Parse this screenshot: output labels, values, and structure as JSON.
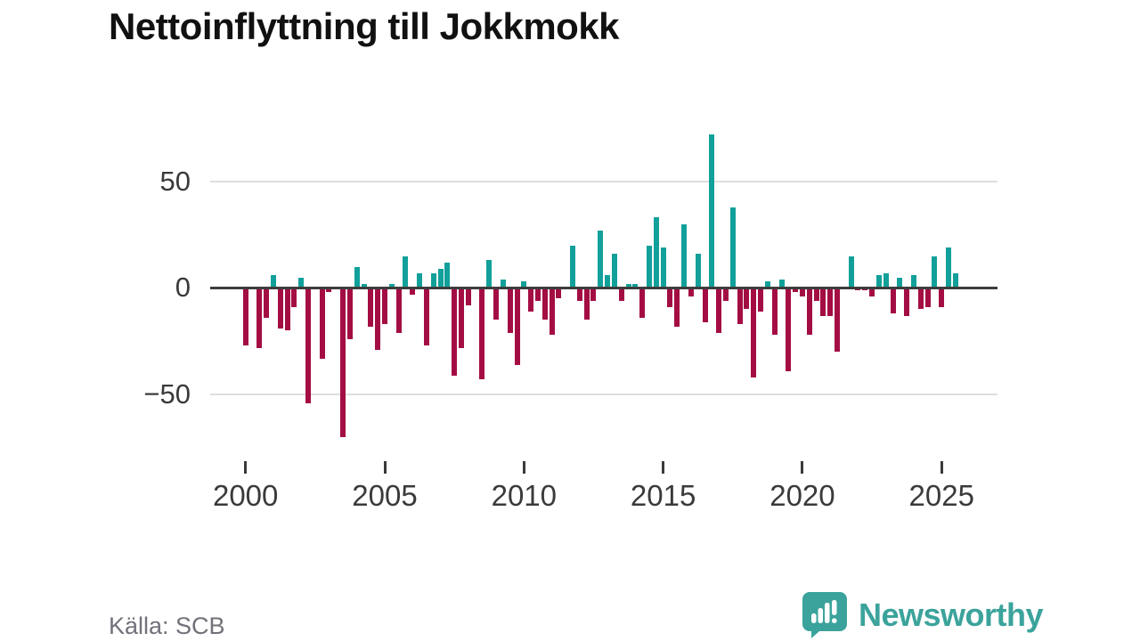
{
  "title": "Nettoinflyttning till Jokkmokk",
  "source_label": "Källa: SCB",
  "brand": {
    "name": "Newsworthy",
    "color": "#3ba39b",
    "icon": "speech-bubble-bar-chart"
  },
  "colors": {
    "positive_bar": "#12a09a",
    "negative_bar": "#a40d44",
    "zero_axis": "#3d3d3d",
    "gridline": "#dedede",
    "axis_text": "#3a3a3a",
    "muted_text": "#71717a"
  },
  "y_axis": {
    "tick_labels": [
      "50",
      "0",
      "−50"
    ],
    "tick_values": [
      50,
      0,
      -50
    ]
  },
  "x_axis": {
    "tick_labels": [
      "2000",
      "2005",
      "2010",
      "2015",
      "2020",
      "2025"
    ]
  },
  "chart_data": {
    "type": "bar",
    "title": "Nettoinflyttning till Jokkmokk",
    "xlabel": "",
    "ylabel": "",
    "ylim": [
      -75,
      80
    ],
    "grid": "horizontal",
    "legend": "none",
    "frequency": "quarterly",
    "quarters": [
      "2000Q1",
      "2000Q2",
      "2000Q3",
      "2000Q4",
      "2001Q1",
      "2001Q2",
      "2001Q3",
      "2001Q4",
      "2002Q1",
      "2002Q2",
      "2002Q3",
      "2002Q4",
      "2003Q1",
      "2003Q2",
      "2003Q3",
      "2003Q4",
      "2004Q1",
      "2004Q2",
      "2004Q3",
      "2004Q4",
      "2005Q1",
      "2005Q2",
      "2005Q3",
      "2005Q4",
      "2006Q1",
      "2006Q2",
      "2006Q3",
      "2006Q4",
      "2007Q1",
      "2007Q2",
      "2007Q3",
      "2007Q4",
      "2008Q1",
      "2008Q2",
      "2008Q3",
      "2008Q4",
      "2009Q1",
      "2009Q2",
      "2009Q3",
      "2009Q4",
      "2010Q1",
      "2010Q2",
      "2010Q3",
      "2010Q4",
      "2011Q1",
      "2011Q2",
      "2011Q3",
      "2011Q4",
      "2012Q1",
      "2012Q2",
      "2012Q3",
      "2012Q4",
      "2013Q1",
      "2013Q2",
      "2013Q3",
      "2013Q4",
      "2014Q1",
      "2014Q2",
      "2014Q3",
      "2014Q4",
      "2015Q1",
      "2015Q2",
      "2015Q3",
      "2015Q4",
      "2016Q1",
      "2016Q2",
      "2016Q3",
      "2016Q4",
      "2017Q1",
      "2017Q2",
      "2017Q3",
      "2017Q4",
      "2018Q1",
      "2018Q2",
      "2018Q3",
      "2018Q4",
      "2019Q1",
      "2019Q2",
      "2019Q3",
      "2019Q4",
      "2020Q1",
      "2020Q2",
      "2020Q3",
      "2020Q4",
      "2021Q1",
      "2021Q2",
      "2021Q3",
      "2021Q4",
      "2022Q1",
      "2022Q2",
      "2022Q3",
      "2022Q4",
      "2023Q1",
      "2023Q2",
      "2023Q3",
      "2023Q4",
      "2024Q1",
      "2024Q2",
      "2024Q3",
      "2024Q4",
      "2025Q1",
      "2025Q2",
      "2025Q3"
    ],
    "values": [
      -27,
      0,
      -28,
      -14,
      6,
      -19,
      -20,
      -9,
      5,
      -54,
      0,
      -33,
      -2,
      0,
      -70,
      -24,
      10,
      2,
      -18,
      -29,
      -17,
      2,
      -21,
      15,
      -3,
      7,
      -27,
      7,
      9,
      12,
      -41,
      -28,
      -8,
      0,
      -43,
      13,
      -15,
      4,
      -21,
      -36,
      3,
      -11,
      -6,
      -15,
      -22,
      -5,
      0,
      20,
      -6,
      -15,
      -6,
      27,
      6,
      16,
      -6,
      2,
      2,
      -14,
      20,
      33,
      19,
      -9,
      -18,
      30,
      -4,
      16,
      -16,
      72,
      -21,
      -6,
      38,
      -17,
      -10,
      -42,
      -11,
      3,
      -22,
      4,
      -39,
      -2,
      -4,
      -22,
      -6,
      -13,
      -13,
      -30,
      0,
      15,
      -1,
      -1,
      -4,
      6,
      7,
      -12,
      5,
      -13,
      6,
      -10,
      -9,
      15,
      -9,
      19,
      7
    ]
  }
}
